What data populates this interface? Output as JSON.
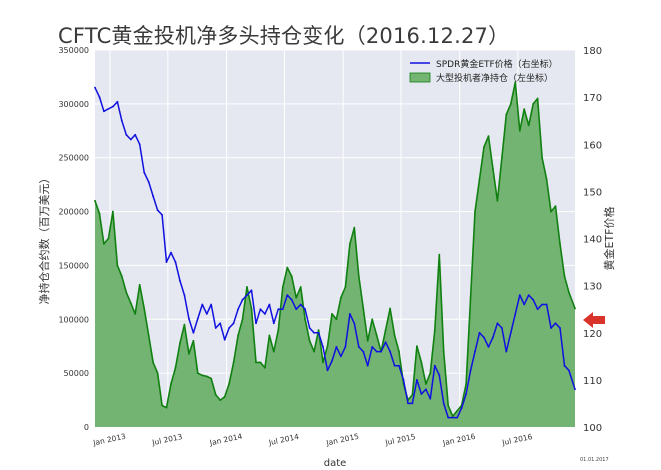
{
  "title": "CFTC黄金投机净多头持仓变化（2016.12.27）",
  "footnote": "01.01.2017",
  "colors": {
    "plot_bg": "#e5e8f0",
    "grid": "#ffffff",
    "area_fill": "#73b473",
    "area_line": "#108010",
    "price_line": "#1010e0",
    "arrow": "#d9342b"
  },
  "chart_data": {
    "type": "area+line",
    "xlabel": "date",
    "ylabel_left": "净持仓合约数（百万美元）",
    "ylabel_right": "黄金ETF价格",
    "ylim_left": [
      0,
      350000
    ],
    "ylim_right": [
      100,
      180
    ],
    "xlim": [
      "2012-11-15",
      "2016-12-27"
    ],
    "yticks_left": [
      "0",
      "50000",
      "100000",
      "150000",
      "200000",
      "250000",
      "300000",
      "350000"
    ],
    "yticks_right": [
      "100",
      "110",
      "120",
      "130",
      "140",
      "150",
      "160",
      "170",
      "180"
    ],
    "xticks": [
      {
        "label": "Jan 2013",
        "date": "2013-01-01"
      },
      {
        "label": "Jul 2013",
        "date": "2013-07-01"
      },
      {
        "label": "Jan 2014",
        "date": "2014-01-01"
      },
      {
        "label": "Jul 2014",
        "date": "2014-07-01"
      },
      {
        "label": "Jan 2015",
        "date": "2015-01-01"
      },
      {
        "label": "Jul 2015",
        "date": "2015-07-01"
      },
      {
        "label": "Jan 2016",
        "date": "2016-01-01"
      },
      {
        "label": "Jul 2016",
        "date": "2016-07-01"
      }
    ],
    "legend": {
      "position": "top-right"
    },
    "series": [
      {
        "name": "SPDR黄金ETF价格（右坐标）",
        "axis": "right",
        "type": "line",
        "points": [
          [
            "2012-11-15",
            172
          ],
          [
            "2012-11-29",
            170
          ],
          [
            "2012-12-13",
            167
          ],
          [
            "2012-12-27",
            167.5
          ],
          [
            "2013-01-10",
            168
          ],
          [
            "2013-01-24",
            169
          ],
          [
            "2013-02-07",
            165
          ],
          [
            "2013-02-21",
            162
          ],
          [
            "2013-03-07",
            161
          ],
          [
            "2013-03-21",
            162
          ],
          [
            "2013-04-04",
            160
          ],
          [
            "2013-04-18",
            154
          ],
          [
            "2013-05-02",
            152
          ],
          [
            "2013-05-16",
            149
          ],
          [
            "2013-05-30",
            146
          ],
          [
            "2013-06-13",
            145
          ],
          [
            "2013-06-27",
            135
          ],
          [
            "2013-07-11",
            137
          ],
          [
            "2013-07-25",
            135
          ],
          [
            "2013-08-08",
            131
          ],
          [
            "2013-08-22",
            128
          ],
          [
            "2013-09-05",
            123
          ],
          [
            "2013-09-19",
            120
          ],
          [
            "2013-10-03",
            123
          ],
          [
            "2013-10-17",
            126
          ],
          [
            "2013-10-31",
            124
          ],
          [
            "2013-11-14",
            126
          ],
          [
            "2013-11-28",
            121
          ],
          [
            "2013-12-12",
            122
          ],
          [
            "2013-12-26",
            118.5
          ],
          [
            "2014-01-09",
            121
          ],
          [
            "2014-01-23",
            122
          ],
          [
            "2014-02-06",
            125
          ],
          [
            "2014-02-20",
            127
          ],
          [
            "2014-03-06",
            128
          ],
          [
            "2014-03-20",
            129
          ],
          [
            "2014-04-03",
            122
          ],
          [
            "2014-04-17",
            125
          ],
          [
            "2014-05-01",
            124
          ],
          [
            "2014-05-15",
            126
          ],
          [
            "2014-05-29",
            122
          ],
          [
            "2014-06-12",
            125
          ],
          [
            "2014-06-26",
            125
          ],
          [
            "2014-07-10",
            128
          ],
          [
            "2014-07-24",
            127
          ],
          [
            "2014-08-07",
            125
          ],
          [
            "2014-08-21",
            126
          ],
          [
            "2014-09-04",
            125
          ],
          [
            "2014-09-18",
            121
          ],
          [
            "2014-10-02",
            120
          ],
          [
            "2014-10-16",
            120
          ],
          [
            "2014-10-30",
            117
          ],
          [
            "2014-11-13",
            112
          ],
          [
            "2014-11-27",
            114
          ],
          [
            "2014-12-11",
            117
          ],
          [
            "2014-12-25",
            115
          ],
          [
            "2015-01-08",
            117
          ],
          [
            "2015-01-22",
            124
          ],
          [
            "2015-02-05",
            122
          ],
          [
            "2015-02-19",
            117
          ],
          [
            "2015-03-05",
            116
          ],
          [
            "2015-03-19",
            113
          ],
          [
            "2015-04-02",
            117
          ],
          [
            "2015-04-16",
            116
          ],
          [
            "2015-04-30",
            116
          ],
          [
            "2015-05-14",
            118
          ],
          [
            "2015-05-28",
            116
          ],
          [
            "2015-06-11",
            113
          ],
          [
            "2015-06-25",
            113
          ],
          [
            "2015-07-09",
            110
          ],
          [
            "2015-07-23",
            105
          ],
          [
            "2015-08-06",
            105
          ],
          [
            "2015-08-20",
            110
          ],
          [
            "2015-09-03",
            107
          ],
          [
            "2015-09-17",
            108
          ],
          [
            "2015-10-01",
            106
          ],
          [
            "2015-10-15",
            113
          ],
          [
            "2015-10-29",
            111
          ],
          [
            "2015-11-12",
            105
          ],
          [
            "2015-11-26",
            102
          ],
          [
            "2015-12-10",
            102
          ],
          [
            "2015-12-24",
            102
          ],
          [
            "2016-01-07",
            104
          ],
          [
            "2016-01-21",
            107
          ],
          [
            "2016-02-04",
            112
          ],
          [
            "2016-02-18",
            116
          ],
          [
            "2016-03-03",
            120
          ],
          [
            "2016-03-17",
            119
          ],
          [
            "2016-03-31",
            117
          ],
          [
            "2016-04-14",
            119
          ],
          [
            "2016-04-28",
            122
          ],
          [
            "2016-05-12",
            121
          ],
          [
            "2016-05-26",
            116
          ],
          [
            "2016-06-09",
            120
          ],
          [
            "2016-06-23",
            124
          ],
          [
            "2016-07-07",
            128
          ],
          [
            "2016-07-21",
            126
          ],
          [
            "2016-08-04",
            128
          ],
          [
            "2016-08-18",
            127
          ],
          [
            "2016-09-01",
            125
          ],
          [
            "2016-09-15",
            126
          ],
          [
            "2016-09-29",
            126
          ],
          [
            "2016-10-13",
            121
          ],
          [
            "2016-10-27",
            122
          ],
          [
            "2016-11-10",
            121
          ],
          [
            "2016-11-24",
            113
          ],
          [
            "2016-12-08",
            112
          ],
          [
            "2016-12-27",
            108
          ]
        ]
      },
      {
        "name": "大型投机者净持仓（左坐标）",
        "axis": "left",
        "type": "area",
        "points": [
          [
            "2012-11-15",
            210000
          ],
          [
            "2012-11-29",
            198000
          ],
          [
            "2012-12-13",
            170000
          ],
          [
            "2012-12-27",
            175000
          ],
          [
            "2013-01-10",
            200000
          ],
          [
            "2013-01-24",
            150000
          ],
          [
            "2013-02-07",
            140000
          ],
          [
            "2013-02-21",
            125000
          ],
          [
            "2013-03-07",
            115000
          ],
          [
            "2013-03-21",
            105000
          ],
          [
            "2013-04-04",
            132000
          ],
          [
            "2013-04-18",
            110000
          ],
          [
            "2013-05-02",
            85000
          ],
          [
            "2013-05-16",
            60000
          ],
          [
            "2013-05-30",
            50000
          ],
          [
            "2013-06-13",
            20000
          ],
          [
            "2013-06-27",
            18000
          ],
          [
            "2013-07-11",
            40000
          ],
          [
            "2013-07-25",
            55000
          ],
          [
            "2013-08-08",
            78000
          ],
          [
            "2013-08-22",
            95000
          ],
          [
            "2013-09-05",
            68000
          ],
          [
            "2013-09-19",
            80000
          ],
          [
            "2013-10-03",
            50000
          ],
          [
            "2013-10-17",
            48000
          ],
          [
            "2013-10-31",
            47000
          ],
          [
            "2013-11-14",
            45000
          ],
          [
            "2013-11-28",
            30000
          ],
          [
            "2013-12-12",
            25000
          ],
          [
            "2013-12-26",
            28000
          ],
          [
            "2014-01-09",
            40000
          ],
          [
            "2014-01-23",
            60000
          ],
          [
            "2014-02-06",
            85000
          ],
          [
            "2014-02-20",
            100000
          ],
          [
            "2014-03-06",
            130000
          ],
          [
            "2014-03-20",
            110000
          ],
          [
            "2014-04-03",
            60000
          ],
          [
            "2014-04-17",
            60000
          ],
          [
            "2014-05-01",
            55000
          ],
          [
            "2014-05-15",
            85000
          ],
          [
            "2014-05-29",
            70000
          ],
          [
            "2014-06-12",
            90000
          ],
          [
            "2014-06-26",
            130000
          ],
          [
            "2014-07-10",
            148000
          ],
          [
            "2014-07-24",
            140000
          ],
          [
            "2014-08-07",
            120000
          ],
          [
            "2014-08-21",
            130000
          ],
          [
            "2014-09-04",
            100000
          ],
          [
            "2014-09-18",
            80000
          ],
          [
            "2014-10-02",
            70000
          ],
          [
            "2014-10-16",
            90000
          ],
          [
            "2014-10-30",
            60000
          ],
          [
            "2014-11-13",
            75000
          ],
          [
            "2014-11-27",
            105000
          ],
          [
            "2014-12-11",
            100000
          ],
          [
            "2014-12-25",
            120000
          ],
          [
            "2015-01-08",
            130000
          ],
          [
            "2015-01-22",
            170000
          ],
          [
            "2015-02-05",
            185000
          ],
          [
            "2015-02-19",
            140000
          ],
          [
            "2015-03-05",
            110000
          ],
          [
            "2015-03-19",
            80000
          ],
          [
            "2015-04-02",
            100000
          ],
          [
            "2015-04-16",
            85000
          ],
          [
            "2015-04-30",
            70000
          ],
          [
            "2015-05-14",
            90000
          ],
          [
            "2015-05-28",
            110000
          ],
          [
            "2015-06-11",
            85000
          ],
          [
            "2015-06-25",
            70000
          ],
          [
            "2015-07-09",
            40000
          ],
          [
            "2015-07-23",
            25000
          ],
          [
            "2015-08-06",
            30000
          ],
          [
            "2015-08-20",
            75000
          ],
          [
            "2015-09-03",
            60000
          ],
          [
            "2015-09-17",
            40000
          ],
          [
            "2015-10-01",
            50000
          ],
          [
            "2015-10-15",
            90000
          ],
          [
            "2015-10-29",
            160000
          ],
          [
            "2015-11-12",
            70000
          ],
          [
            "2015-11-26",
            20000
          ],
          [
            "2015-12-10",
            10000
          ],
          [
            "2015-12-24",
            15000
          ],
          [
            "2016-01-07",
            20000
          ],
          [
            "2016-01-21",
            40000
          ],
          [
            "2016-02-04",
            120000
          ],
          [
            "2016-02-18",
            200000
          ],
          [
            "2016-03-03",
            230000
          ],
          [
            "2016-03-17",
            260000
          ],
          [
            "2016-03-31",
            270000
          ],
          [
            "2016-04-14",
            240000
          ],
          [
            "2016-04-28",
            210000
          ],
          [
            "2016-05-12",
            250000
          ],
          [
            "2016-05-26",
            290000
          ],
          [
            "2016-06-09",
            300000
          ],
          [
            "2016-06-23",
            320000
          ],
          [
            "2016-07-07",
            275000
          ],
          [
            "2016-07-21",
            295000
          ],
          [
            "2016-08-04",
            280000
          ],
          [
            "2016-08-18",
            300000
          ],
          [
            "2016-09-01",
            305000
          ],
          [
            "2016-09-15",
            250000
          ],
          [
            "2016-09-29",
            230000
          ],
          [
            "2016-10-13",
            200000
          ],
          [
            "2016-10-27",
            205000
          ],
          [
            "2016-11-10",
            170000
          ],
          [
            "2016-11-24",
            140000
          ],
          [
            "2016-12-08",
            125000
          ],
          [
            "2016-12-27",
            110000
          ]
        ]
      }
    ]
  }
}
